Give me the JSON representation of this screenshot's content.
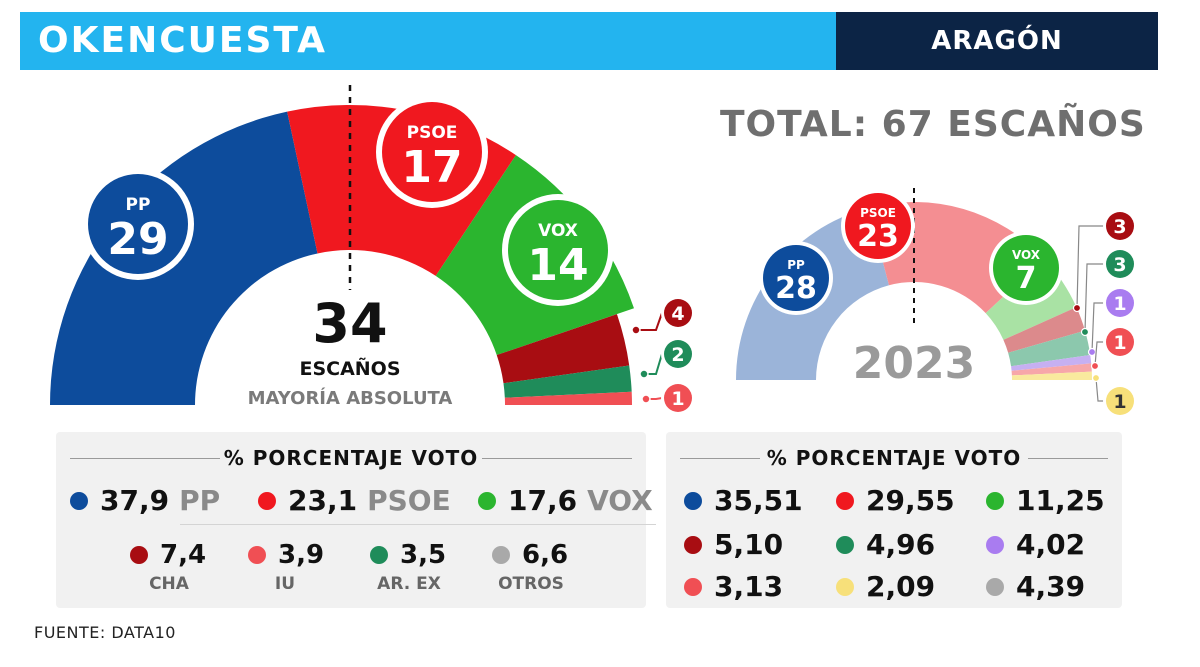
{
  "header": {
    "brand": "OKENCUESTA",
    "region": "ARAGÓN"
  },
  "total_label": "TOTAL: 67 ESCAÑOS",
  "colors": {
    "pp": "#0d4c9c",
    "psoe": "#f0181f",
    "vox": "#2bb52f",
    "cha": "#a80d12",
    "arex": "#1f8c5a",
    "iu": "#f04f54",
    "otros": "#a9a9a9",
    "purple": "#a97cf0",
    "yellow": "#f7e07a",
    "pp_light": "#9bb4d9",
    "psoe_light": "#f48e92",
    "vox_light": "#a9e2a4",
    "cha_light": "#dc8a8c",
    "arex_light": "#8cc8ad",
    "iu_light": "#f7a7a9"
  },
  "chart_data": [
    {
      "type": "pie",
      "variant": "half-donut",
      "total_seats": 67,
      "majority_value": "34",
      "majority_label": "ESCAÑOS",
      "majority_sub": "MAYORÍA ABSOLUTA",
      "series": [
        {
          "name": "PP",
          "value": 29,
          "color": "#0d4c9c",
          "badge": "PP"
        },
        {
          "name": "PSOE",
          "value": 17,
          "color": "#f0181f",
          "badge": "PSOE"
        },
        {
          "name": "VOX",
          "value": 14,
          "color": "#2bb52f",
          "badge": "VOX"
        },
        {
          "name": "CHA",
          "value": 4,
          "color": "#a80d12"
        },
        {
          "name": "AR. EX",
          "value": 2,
          "color": "#1f8c5a"
        },
        {
          "name": "IU",
          "value": 1,
          "color": "#f04f54"
        }
      ]
    },
    {
      "type": "pie",
      "variant": "half-donut",
      "year": "2023",
      "series": [
        {
          "value": 28,
          "color": "#9bb4d9",
          "badge_color": "#0d4c9c",
          "badge": "PP"
        },
        {
          "value": 23,
          "color": "#f48e92",
          "badge_color": "#f0181f",
          "badge": "PSOE"
        },
        {
          "value": 7,
          "color": "#a9e2a4",
          "badge_color": "#2bb52f",
          "badge": "VOX"
        },
        {
          "value": 3,
          "color": "#dc8a8c",
          "badge_color": "#a80d12"
        },
        {
          "value": 3,
          "color": "#8cc8ad",
          "badge_color": "#1f8c5a"
        },
        {
          "value": 1,
          "color": "#c6b0f2",
          "badge_color": "#a97cf0"
        },
        {
          "value": 1,
          "color": "#f7a7a9",
          "badge_color": "#f04f54"
        },
        {
          "value": 1,
          "color": "#f9ea9e",
          "badge_color": "#f7e07a",
          "label_color": "#333333"
        }
      ]
    }
  ],
  "vote_left": {
    "title": "% PORCENTAJE VOTO",
    "main": [
      {
        "value": "37,9",
        "party": "PP",
        "color": "#0d4c9c"
      },
      {
        "value": "23,1",
        "party": "PSOE",
        "color": "#f0181f"
      },
      {
        "value": "17,6",
        "party": "VOX",
        "color": "#2bb52f"
      }
    ],
    "minor": [
      {
        "value": "7,4",
        "party": "CHA",
        "color": "#a80d12"
      },
      {
        "value": "3,9",
        "party": "IU",
        "color": "#f04f54"
      },
      {
        "value": "3,5",
        "party": "AR. EX",
        "color": "#1f8c5a"
      },
      {
        "value": "6,6",
        "party": "OTROS",
        "color": "#a9a9a9"
      }
    ]
  },
  "vote_right": {
    "title": "% PORCENTAJE VOTO",
    "rows": [
      [
        {
          "value": "35,51",
          "color": "#0d4c9c"
        },
        {
          "value": "29,55",
          "color": "#f0181f"
        },
        {
          "value": "11,25",
          "color": "#2bb52f"
        }
      ],
      [
        {
          "value": "5,10",
          "color": "#a80d12"
        },
        {
          "value": "4,96",
          "color": "#1f8c5a"
        },
        {
          "value": "4,02",
          "color": "#a97cf0"
        }
      ],
      [
        {
          "value": "3,13",
          "color": "#f04f54"
        },
        {
          "value": "2,09",
          "color": "#f7e07a"
        },
        {
          "value": "4,39",
          "color": "#a9a9a9"
        }
      ]
    ]
  },
  "source": "FUENTE: DATA10"
}
